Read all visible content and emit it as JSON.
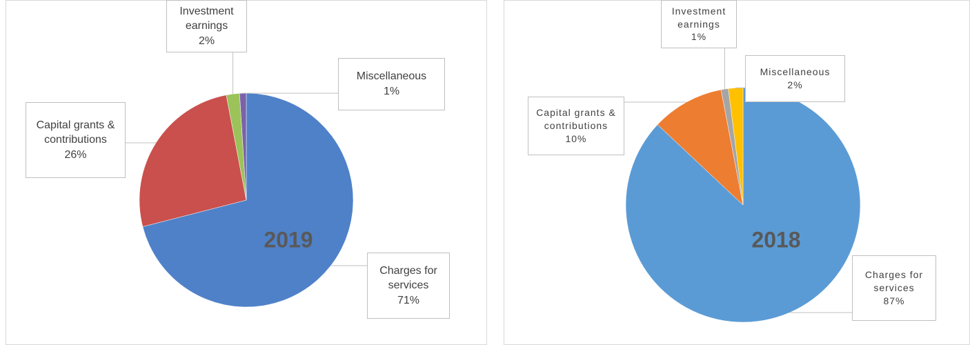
{
  "chart_data": [
    {
      "type": "pie",
      "title": "2019",
      "categories": [
        "Charges for services",
        "Capital grants & contributions",
        "Investment earnings",
        "Miscellaneous"
      ],
      "values": [
        71,
        26,
        2,
        1
      ],
      "value_labels": [
        "71%",
        "26%",
        "2%",
        "1%"
      ],
      "colors": [
        "#4f81c9",
        "#c9504d",
        "#9bc35a",
        "#7b62a8"
      ]
    },
    {
      "type": "pie",
      "title": "2018",
      "categories": [
        "Charges for services",
        "Capital grants & contributions",
        "Investment earnings",
        "Miscellaneous"
      ],
      "values": [
        87,
        10,
        1,
        2
      ],
      "value_labels": [
        "87%",
        "10%",
        "1%",
        "2%"
      ],
      "colors": [
        "#5b9bd5",
        "#ed7d31",
        "#a5a5a5",
        "#ffc000"
      ]
    }
  ]
}
